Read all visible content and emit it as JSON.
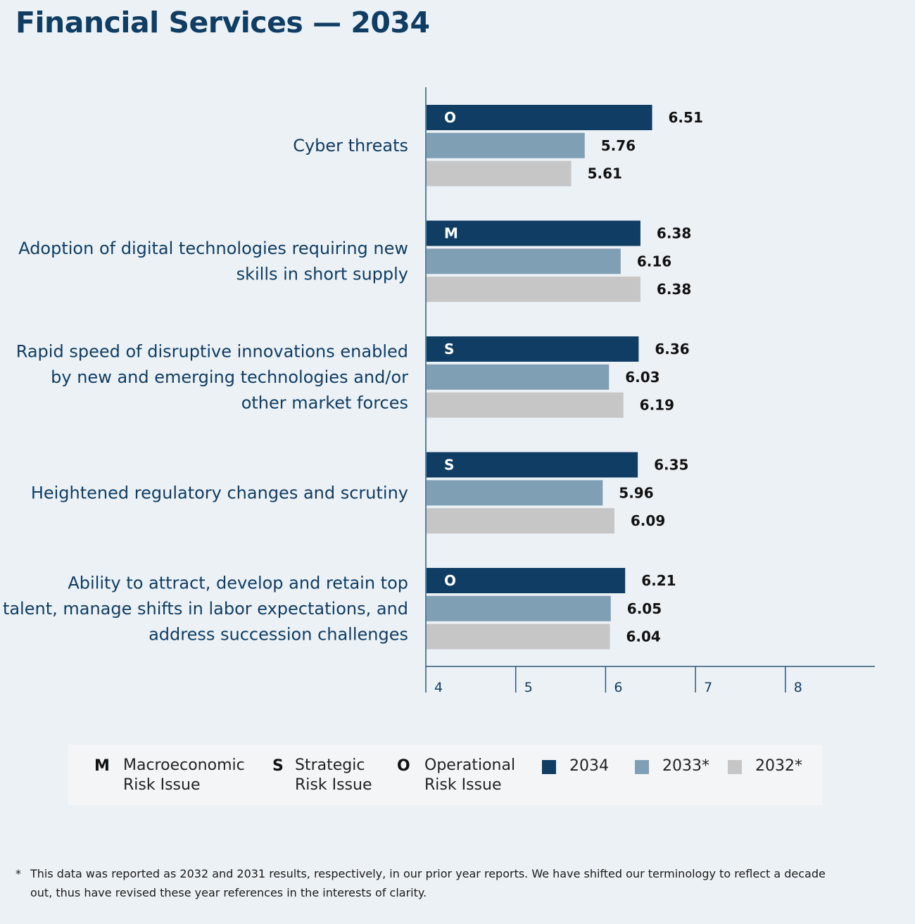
{
  "title": "Financial Services — 2034",
  "colors": {
    "2034": "#0f3d63",
    "2033": "#7f9fb4",
    "2032": "#c6c6c7",
    "axis": "#2d5877",
    "text": "#0f3d63"
  },
  "chart_data": {
    "type": "bar",
    "orientation": "horizontal",
    "title": "Financial Services — 2034",
    "xlim": [
      4,
      9
    ],
    "xticks": [
      4,
      5,
      6,
      7,
      8
    ],
    "categories": [
      {
        "label_lines": [
          "Cyber threats"
        ],
        "risk_code": "O"
      },
      {
        "label_lines": [
          "Adoption of digital technologies requiring new",
          "skills in short supply"
        ],
        "risk_code": "M"
      },
      {
        "label_lines": [
          "Rapid speed of disruptive innovations enabled",
          "by new and emerging technologies and/or",
          "other market forces"
        ],
        "risk_code": "S"
      },
      {
        "label_lines": [
          "Heightened regulatory changes and scrutiny"
        ],
        "risk_code": "S"
      },
      {
        "label_lines": [
          "Ability to attract, develop and retain top",
          "talent, manage shifts in labor expectations, and",
          "address succession challenges"
        ],
        "risk_code": "O"
      }
    ],
    "series": [
      {
        "name": "2034",
        "values": [
          6.51,
          6.38,
          6.36,
          6.35,
          6.21
        ]
      },
      {
        "name": "2033*",
        "values": [
          5.76,
          6.16,
          6.03,
          5.96,
          6.05
        ]
      },
      {
        "name": "2032*",
        "values": [
          5.61,
          6.38,
          6.19,
          6.09,
          6.04
        ]
      }
    ]
  },
  "legend": {
    "risk_types": [
      {
        "code": "M",
        "line1": "Macroeconomic",
        "line2": "Risk Issue"
      },
      {
        "code": "S",
        "line1": "Strategic",
        "line2": "Risk Issue"
      },
      {
        "code": "O",
        "line1": "Operational",
        "line2": "Risk Issue"
      }
    ],
    "years": [
      "2034",
      "2033*",
      "2032*"
    ]
  },
  "footnote": {
    "star": "*",
    "text": "This data was reported as 2032 and 2031 results, respectively, in our prior year reports. We have shifted our terminology to reflect a decade out, thus have revised these year references in the interests of clarity."
  }
}
